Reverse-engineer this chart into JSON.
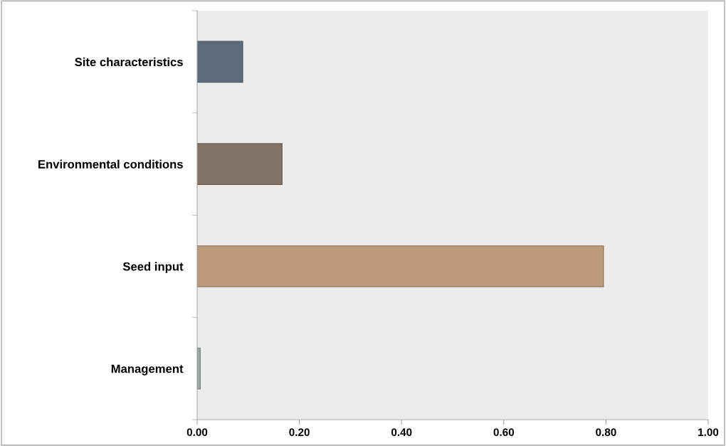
{
  "chart_data": {
    "type": "bar",
    "orientation": "horizontal",
    "categories": [
      "Site characteristics",
      "Environmental conditions",
      "Seed input",
      "Management"
    ],
    "values": [
      0.089,
      0.166,
      0.795,
      0.006
    ],
    "colors": [
      "#5d6b7b",
      "#847468",
      "#bb9b7b",
      "#a0aaa2"
    ],
    "xlim": [
      0,
      1
    ],
    "xticks": [
      {
        "value": 0,
        "label": "0.00"
      },
      {
        "value": 0.2,
        "label": "0.20"
      },
      {
        "value": 0.4,
        "label": "0.40"
      },
      {
        "value": 0.6,
        "label": "0.60"
      },
      {
        "value": 0.8,
        "label": "0.80"
      },
      {
        "value": 1,
        "label": "1.00"
      }
    ],
    "grid": false,
    "legend": false
  }
}
